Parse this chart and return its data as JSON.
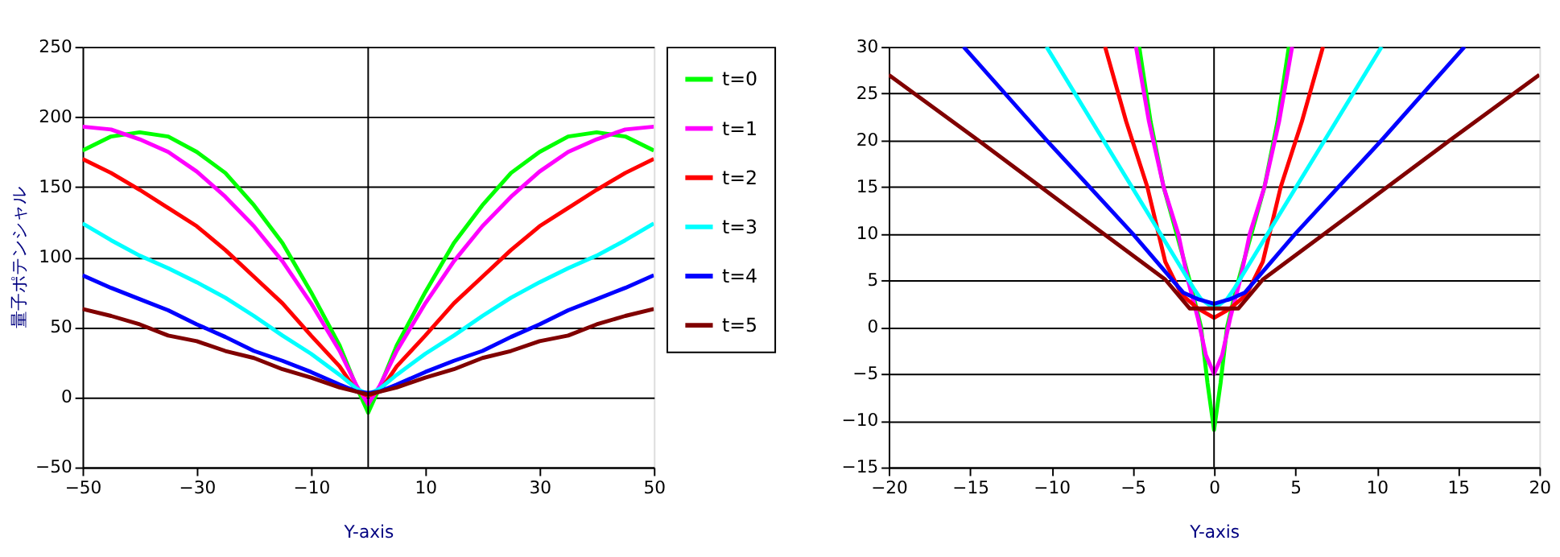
{
  "chart_data": [
    {
      "type": "line",
      "ylabel": "量子ポテンシャル",
      "xlabel": "Y-axis",
      "xlim": [
        -50,
        50
      ],
      "xticks": [
        -50,
        -30,
        -10,
        10,
        30,
        50
      ],
      "ylim": [
        -50,
        250
      ],
      "yticks": [
        -50,
        0,
        50,
        100,
        150,
        200,
        250
      ],
      "grid": "y",
      "legend": "right",
      "marker": "none",
      "line_style": "solid",
      "ref_lines": [
        {
          "axis": "x",
          "value": 0
        }
      ],
      "series": [
        {
          "name": "t=0",
          "color": "#00ff00",
          "x": [
            -50,
            -45,
            -40,
            -35,
            -30,
            -25,
            -20,
            -15,
            -10,
            -5,
            -2,
            0,
            2,
            5,
            10,
            15,
            20,
            25,
            30,
            35,
            40,
            45,
            50
          ],
          "values": [
            176,
            186,
            189,
            186,
            175,
            160,
            137,
            110,
            75,
            37,
            7,
            -11,
            7,
            37,
            75,
            110,
            137,
            160,
            175,
            186,
            189,
            186,
            176
          ]
        },
        {
          "name": "t=1",
          "color": "#ff00ff",
          "x": [
            -50,
            -45,
            -40,
            -35,
            -30,
            -25,
            -20,
            -15,
            -10,
            -5,
            -2,
            0,
            2,
            5,
            10,
            15,
            20,
            25,
            30,
            35,
            40,
            45,
            50
          ],
          "values": [
            193,
            191,
            184,
            175,
            161,
            143,
            122,
            97,
            67,
            33,
            8,
            -5,
            8,
            33,
            67,
            97,
            122,
            143,
            161,
            175,
            184,
            191,
            193
          ]
        },
        {
          "name": "t=2",
          "color": "#ff0000",
          "x": [
            -50,
            -45,
            -40,
            -35,
            -30,
            -25,
            -20,
            -15,
            -10,
            -5,
            -2,
            0,
            2,
            5,
            10,
            15,
            20,
            25,
            30,
            35,
            40,
            45,
            50
          ],
          "values": [
            170,
            160,
            148,
            135,
            122,
            105,
            86,
            67,
            44,
            22,
            4,
            1,
            4,
            22,
            44,
            67,
            86,
            105,
            122,
            135,
            148,
            160,
            170
          ]
        },
        {
          "name": "t=3",
          "color": "#00ffff",
          "x": [
            -50,
            -45,
            -40,
            -35,
            -30,
            -25,
            -20,
            -15,
            -10,
            -5,
            -2,
            0,
            2,
            5,
            10,
            15,
            20,
            25,
            30,
            35,
            40,
            45,
            50
          ],
          "values": [
            124,
            112,
            101,
            92,
            82,
            71,
            58,
            44,
            31,
            16,
            6,
            2,
            6,
            16,
            31,
            44,
            58,
            71,
            82,
            92,
            101,
            112,
            124
          ]
        },
        {
          "name": "t=4",
          "color": "#0000ff",
          "x": [
            -50,
            -45,
            -40,
            -35,
            -30,
            -25,
            -20,
            -15,
            -10,
            -5,
            -2,
            0,
            2,
            5,
            10,
            15,
            20,
            25,
            30,
            35,
            40,
            45,
            50
          ],
          "values": [
            87,
            78,
            70,
            62,
            52,
            43,
            33,
            26,
            18,
            9,
            4,
            3,
            4,
            9,
            18,
            26,
            33,
            43,
            52,
            62,
            70,
            78,
            87
          ]
        },
        {
          "name": "t=5",
          "color": "#800000",
          "x": [
            -50,
            -45,
            -40,
            -35,
            -30,
            -25,
            -20,
            -15,
            -10,
            -5,
            -2,
            0,
            2,
            5,
            10,
            15,
            20,
            25,
            30,
            35,
            40,
            45,
            50
          ],
          "values": [
            63,
            58,
            52,
            44,
            40,
            33,
            28,
            20,
            14,
            7,
            4,
            2,
            4,
            7,
            14,
            20,
            28,
            33,
            40,
            44,
            52,
            58,
            63
          ]
        }
      ]
    },
    {
      "type": "line",
      "xlabel": "Y-axis",
      "xlim": [
        -20,
        20
      ],
      "xticks": [
        -20,
        -15,
        -10,
        -5,
        0,
        5,
        10,
        15,
        20
      ],
      "ylim": [
        -15,
        30
      ],
      "yticks": [
        -15,
        -10,
        -5,
        0,
        5,
        10,
        15,
        20,
        25,
        30
      ],
      "grid": "y",
      "marker": "none",
      "line_style": "solid",
      "ref_lines": [
        {
          "axis": "x",
          "value": 0
        }
      ],
      "series": [
        {
          "color": "#00ff00",
          "x": [
            -4.6,
            -3.9,
            -3.1,
            -2.3,
            -1.5,
            -0.8,
            -0.4,
            0,
            0.4,
            0.8,
            1.5,
            2.3,
            3.1,
            3.9,
            4.6
          ],
          "values": [
            30,
            22,
            15,
            10,
            5,
            0,
            -6,
            -11,
            -6,
            0,
            5,
            10,
            15,
            22,
            30
          ]
        },
        {
          "color": "#ff00ff",
          "x": [
            -4.8,
            -4,
            -3.1,
            -2.2,
            -1.6,
            -1,
            -0.5,
            0,
            0.5,
            1,
            1.6,
            2.2,
            3.1,
            4,
            4.8
          ],
          "values": [
            30,
            22,
            15,
            10,
            5,
            1,
            -3,
            -5,
            -3,
            1,
            5,
            10,
            15,
            22,
            30
          ]
        },
        {
          "color": "#ff0000",
          "x": [
            -6.7,
            -5.4,
            -4.1,
            -3,
            -2,
            -1,
            0,
            1,
            2,
            3,
            4.1,
            5.4,
            6.7
          ],
          "values": [
            30,
            22,
            15,
            7,
            3.5,
            2,
            1,
            2,
            3.5,
            7,
            15,
            22,
            30
          ]
        },
        {
          "color": "#00ffff",
          "x": [
            -10.3,
            -6.8,
            -3.3,
            -1.2,
            -0.8,
            0,
            0.8,
            1.2,
            3.3,
            6.8,
            10.3
          ],
          "values": [
            30,
            20,
            10,
            4,
            3,
            2,
            3,
            4,
            10,
            20,
            30
          ]
        },
        {
          "color": "#0000ff",
          "x": [
            -15.4,
            -10.3,
            -5,
            -1.9,
            -1,
            0,
            1,
            1.9,
            5,
            10.3,
            15.4
          ],
          "values": [
            30,
            20,
            10,
            3.7,
            3,
            2.5,
            3,
            3.7,
            10,
            20,
            30
          ]
        },
        {
          "color": "#800000",
          "x": [
            -20,
            -14.5,
            -6.8,
            -3,
            -1.5,
            0,
            1.5,
            3,
            6.8,
            14.5,
            20
          ],
          "values": [
            27,
            20,
            10,
            5.1,
            2,
            2,
            2,
            5.1,
            10,
            20,
            27
          ]
        }
      ]
    }
  ]
}
